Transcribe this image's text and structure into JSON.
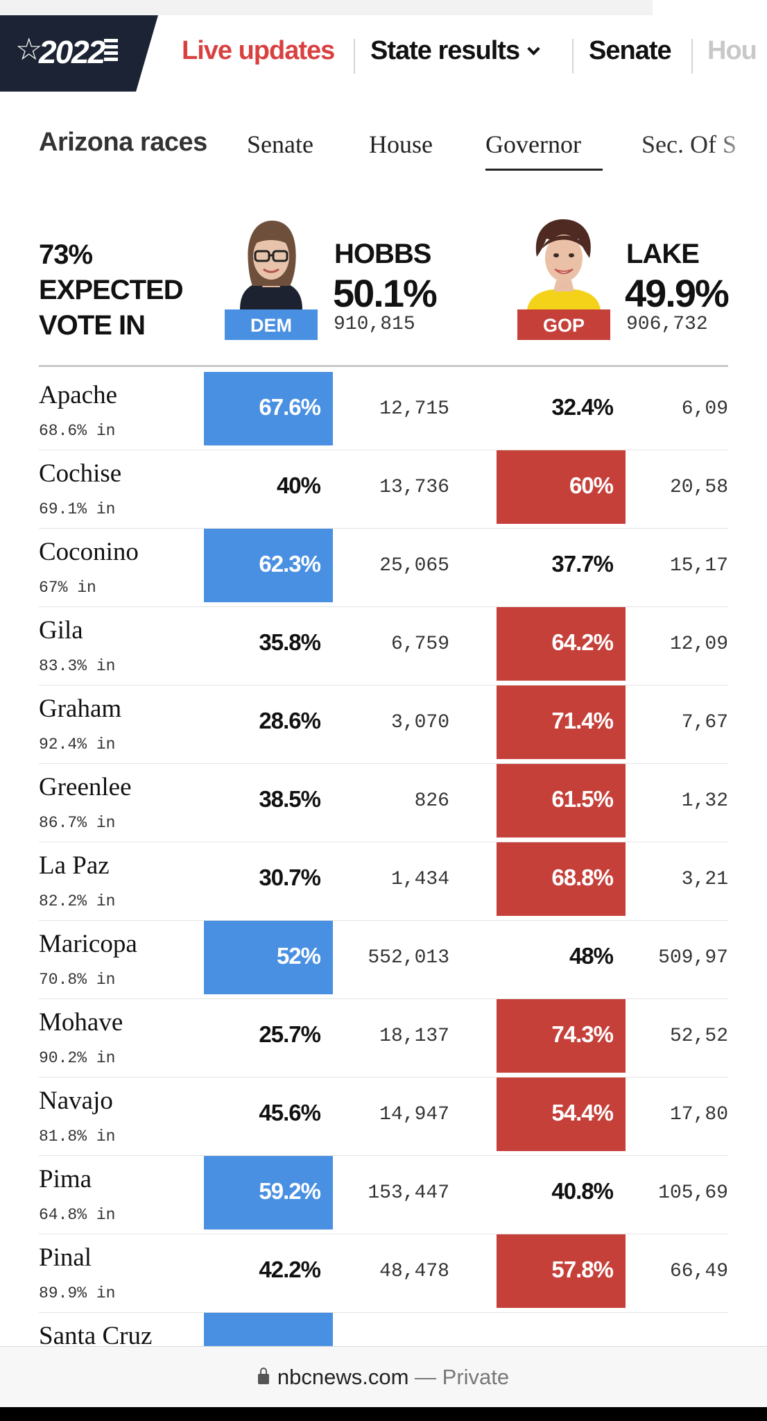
{
  "nav": {
    "logo_year": "2022",
    "items": [
      "Live updates",
      "State results",
      "Senate",
      "Hou"
    ]
  },
  "race_nav": {
    "title": "Arizona races",
    "tabs": [
      "Senate",
      "House",
      "Governor",
      "Sec. Of S"
    ],
    "active_tab": "Governor"
  },
  "summary": {
    "expected_lines": [
      "73%",
      "EXPECTED",
      "VOTE IN"
    ],
    "dem": {
      "name": "HOBBS",
      "pct": "50.1%",
      "votes": "910,815",
      "party": "DEM"
    },
    "gop": {
      "name": "LAKE",
      "pct": "49.9%",
      "votes": "906,732",
      "party": "GOP"
    }
  },
  "colors": {
    "dem": "#4a90e2",
    "gop": "#c6403a",
    "nav_dark": "#1b2334",
    "live": "#d8413f"
  },
  "counties": [
    {
      "name": "Apache",
      "in": "68.6% in",
      "dem_pct": "67.6%",
      "dem_votes": "12,715",
      "gop_pct": "32.4%",
      "gop_votes": "6,09",
      "leader": "dem"
    },
    {
      "name": "Cochise",
      "in": "69.1% in",
      "dem_pct": "40%",
      "dem_votes": "13,736",
      "gop_pct": "60%",
      "gop_votes": "20,58",
      "leader": "gop"
    },
    {
      "name": "Coconino",
      "in": "67% in",
      "dem_pct": "62.3%",
      "dem_votes": "25,065",
      "gop_pct": "37.7%",
      "gop_votes": "15,17",
      "leader": "dem"
    },
    {
      "name": "Gila",
      "in": "83.3% in",
      "dem_pct": "35.8%",
      "dem_votes": "6,759",
      "gop_pct": "64.2%",
      "gop_votes": "12,09",
      "leader": "gop"
    },
    {
      "name": "Graham",
      "in": "92.4% in",
      "dem_pct": "28.6%",
      "dem_votes": "3,070",
      "gop_pct": "71.4%",
      "gop_votes": "7,67",
      "leader": "gop"
    },
    {
      "name": "Greenlee",
      "in": "86.7% in",
      "dem_pct": "38.5%",
      "dem_votes": "826",
      "gop_pct": "61.5%",
      "gop_votes": "1,32",
      "leader": "gop"
    },
    {
      "name": "La Paz",
      "in": "82.2% in",
      "dem_pct": "30.7%",
      "dem_votes": "1,434",
      "gop_pct": "68.8%",
      "gop_votes": "3,21",
      "leader": "gop"
    },
    {
      "name": "Maricopa",
      "in": "70.8% in",
      "dem_pct": "52%",
      "dem_votes": "552,013",
      "gop_pct": "48%",
      "gop_votes": "509,97",
      "leader": "dem"
    },
    {
      "name": "Mohave",
      "in": "90.2% in",
      "dem_pct": "25.7%",
      "dem_votes": "18,137",
      "gop_pct": "74.3%",
      "gop_votes": "52,52",
      "leader": "gop"
    },
    {
      "name": "Navajo",
      "in": "81.8% in",
      "dem_pct": "45.6%",
      "dem_votes": "14,947",
      "gop_pct": "54.4%",
      "gop_votes": "17,80",
      "leader": "gop"
    },
    {
      "name": "Pima",
      "in": "64.8% in",
      "dem_pct": "59.2%",
      "dem_votes": "153,447",
      "gop_pct": "40.8%",
      "gop_votes": "105,69",
      "leader": "dem"
    },
    {
      "name": "Pinal",
      "in": "89.9% in",
      "dem_pct": "42.2%",
      "dem_votes": "48,478",
      "gop_pct": "57.8%",
      "gop_votes": "66,49",
      "leader": "gop"
    },
    {
      "name": "Santa Cruz",
      "in": "",
      "dem_pct": "",
      "dem_votes": "",
      "gop_pct": "",
      "gop_votes": "",
      "leader": "dem"
    }
  ],
  "browser": {
    "domain": "nbcnews.com",
    "separator": "—",
    "mode": "Private",
    "lock_icon": "lock-icon"
  }
}
